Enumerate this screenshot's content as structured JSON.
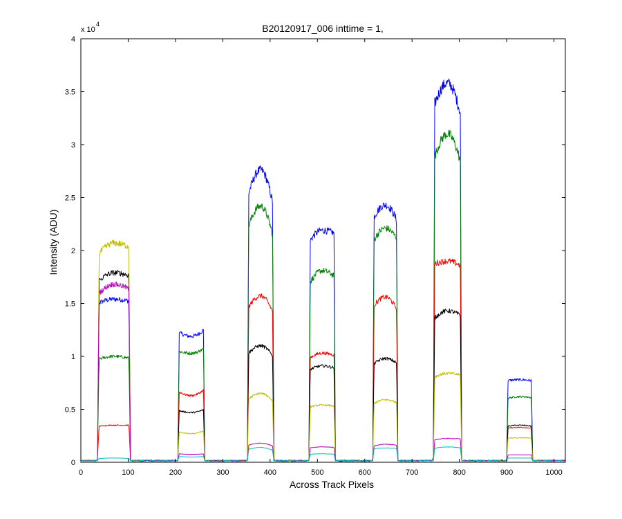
{
  "chart_data": {
    "type": "line",
    "title": "B20120917_006 inttime = 1,",
    "xlabel": "Across Track Pixels",
    "ylabel": "Intensity (ADU)",
    "xlim": [
      0,
      1024
    ],
    "ylim": [
      0,
      40000
    ],
    "y_multiplier_label": "x 10",
    "y_multiplier_exponent": "4",
    "grid": false,
    "legend": "none",
    "x_ticks": [
      0,
      100,
      200,
      300,
      400,
      500,
      600,
      700,
      800,
      900,
      1000
    ],
    "x_tick_labels": [
      "0",
      "100",
      "200",
      "300",
      "400",
      "500",
      "600",
      "700",
      "800",
      "900",
      "1000"
    ],
    "y_ticks": [
      0,
      5000,
      10000,
      15000,
      20000,
      25000,
      30000,
      35000,
      40000
    ],
    "y_tick_labels": [
      "0",
      "0.5",
      "1",
      "1.5",
      "2",
      "2.5",
      "3",
      "3.5",
      "4"
    ],
    "baseline": 150,
    "segments": [
      {
        "x0": 35,
        "x1": 105
      },
      {
        "x0": 205,
        "x1": 262
      },
      {
        "x0": 352,
        "x1": 408
      },
      {
        "x0": 482,
        "x1": 538
      },
      {
        "x0": 617,
        "x1": 670
      },
      {
        "x0": 745,
        "x1": 805
      },
      {
        "x0": 900,
        "x1": 955
      }
    ],
    "series": [
      {
        "color": "#0000ff",
        "segment_values": [
          [
            15000,
            15400,
            15200
          ],
          [
            12300,
            11900,
            12600
          ],
          [
            25000,
            27600,
            24000
          ],
          [
            20800,
            21900,
            21600
          ],
          [
            23000,
            24300,
            22600
          ],
          [
            33500,
            35800,
            32500
          ],
          [
            7700,
            7800,
            7700
          ]
        ]
      },
      {
        "color": "#008000",
        "segment_values": [
          [
            9700,
            10000,
            9800
          ],
          [
            10500,
            10300,
            10800
          ],
          [
            22000,
            24200,
            21000
          ],
          [
            16800,
            18100,
            17500
          ],
          [
            20800,
            22100,
            21000
          ],
          [
            28500,
            31000,
            28000
          ],
          [
            6000,
            6200,
            6100
          ]
        ]
      },
      {
        "color": "#ff0000",
        "segment_values": [
          [
            3400,
            3500,
            3500
          ],
          [
            6700,
            6300,
            6900
          ],
          [
            14500,
            15700,
            14000
          ],
          [
            9800,
            10300,
            10100
          ],
          [
            14700,
            15600,
            14300
          ],
          [
            18700,
            19000,
            18500
          ],
          [
            3200,
            3300,
            3200
          ]
        ]
      },
      {
        "color": "#000000",
        "segment_values": [
          [
            17000,
            17900,
            17600
          ],
          [
            4900,
            4700,
            5000
          ],
          [
            10200,
            11000,
            9900
          ],
          [
            8700,
            9100,
            8900
          ],
          [
            9200,
            9800,
            9300
          ],
          [
            13500,
            14300,
            13800
          ],
          [
            3400,
            3500,
            3400
          ]
        ]
      },
      {
        "color": "#bfbf00",
        "segment_values": [
          [
            19500,
            20700,
            20300
          ],
          [
            2900,
            2700,
            3000
          ],
          [
            5900,
            6500,
            5700
          ],
          [
            5200,
            5400,
            5300
          ],
          [
            5500,
            5900,
            5600
          ],
          [
            8000,
            8400,
            8200
          ],
          [
            2300,
            2300,
            2300
          ]
        ]
      },
      {
        "color": "#bf00bf",
        "segment_values": [
          [
            15800,
            16800,
            16300
          ],
          [
            800,
            750,
            800
          ],
          [
            1600,
            1800,
            1500
          ],
          [
            1350,
            1450,
            1400
          ],
          [
            1500,
            1700,
            1600
          ],
          [
            2100,
            2250,
            2200
          ],
          [
            700,
            700,
            700
          ]
        ]
      },
      {
        "color": "#00bfbf",
        "segment_values": [
          [
            350,
            400,
            350
          ],
          [
            550,
            500,
            550
          ],
          [
            1200,
            1400,
            1100
          ],
          [
            750,
            800,
            750
          ],
          [
            1250,
            1350,
            1300
          ],
          [
            1300,
            1450,
            1350
          ],
          [
            400,
            400,
            400
          ]
        ]
      }
    ]
  }
}
